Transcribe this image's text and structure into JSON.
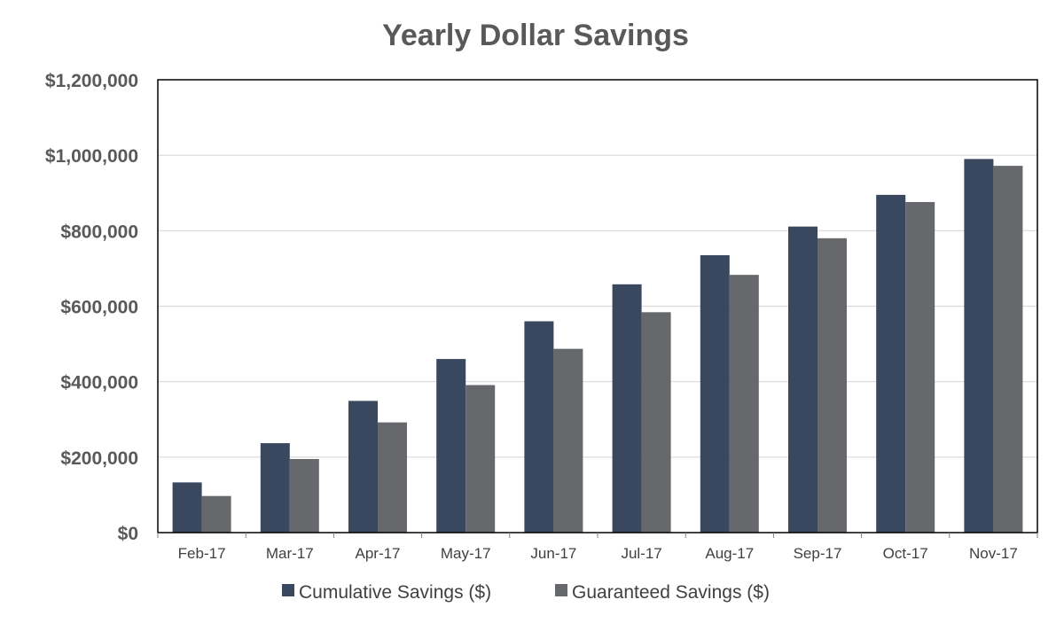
{
  "chart_data": {
    "type": "bar",
    "title": "Yearly Dollar Savings",
    "xlabel": "",
    "ylabel": "",
    "ylim": [
      0,
      1200000
    ],
    "yticks": [
      0,
      200000,
      400000,
      600000,
      800000,
      1000000,
      1200000
    ],
    "ytick_labels": [
      "$0",
      "$200,000",
      "$400,000",
      "$600,000",
      "$800,000",
      "$1,000,000",
      "$1,200,000"
    ],
    "categories": [
      "Feb-17",
      "Mar-17",
      "Apr-17",
      "May-17",
      "Jun-17",
      "Jul-17",
      "Aug-17",
      "Sep-17",
      "Oct-17",
      "Nov-17"
    ],
    "series": [
      {
        "name": "Cumulative Savings ($)",
        "color": "#39475F",
        "values": [
          133000,
          237000,
          349000,
          460000,
          560000,
          658000,
          735000,
          811000,
          895000,
          990000
        ]
      },
      {
        "name": "Guaranteed Savings ($)",
        "color": "#67686B",
        "values": [
          97000,
          195000,
          292000,
          391000,
          487000,
          584000,
          683000,
          780000,
          876000,
          972000
        ]
      }
    ],
    "grid": true,
    "legend": "bottom"
  }
}
